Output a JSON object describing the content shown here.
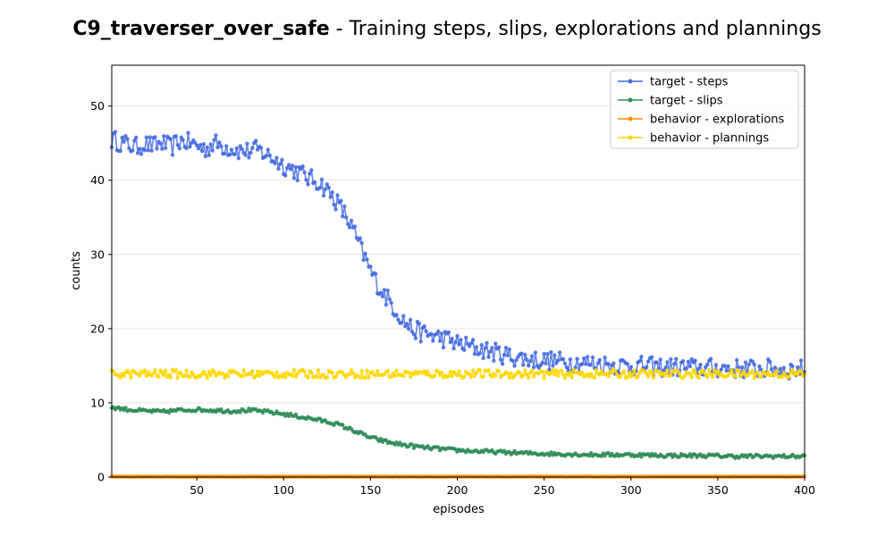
{
  "title_bold": "C9_traverser_over_safe",
  "title_rest": " - Training steps, slips, explorations and plannings",
  "chart_data": {
    "type": "line",
    "title": "C9_traverser_over_safe - Training steps, slips, explorations and plannings",
    "xlabel": "episodes",
    "ylabel": "counts",
    "xlim": [
      1,
      400
    ],
    "ylim": [
      0,
      55.5
    ],
    "xticks": [
      50,
      100,
      150,
      200,
      250,
      300,
      350,
      400
    ],
    "yticks": [
      0,
      10,
      20,
      30,
      40,
      50
    ],
    "grid": "horizontal",
    "legend_position": "top-right",
    "series": [
      {
        "name": "target - steps",
        "color": "#4169e1",
        "x": [
          1,
          5,
          10,
          15,
          20,
          25,
          30,
          35,
          40,
          45,
          50,
          55,
          60,
          65,
          70,
          75,
          80,
          85,
          90,
          95,
          100,
          105,
          110,
          115,
          120,
          125,
          130,
          135,
          140,
          145,
          150,
          155,
          160,
          165,
          170,
          175,
          180,
          185,
          190,
          195,
          200,
          210,
          220,
          230,
          240,
          250,
          260,
          270,
          280,
          290,
          300,
          310,
          320,
          330,
          340,
          350,
          360,
          370,
          380,
          390,
          400
        ],
        "y": [
          45.5,
          45.2,
          44.8,
          44.5,
          44.9,
          44.6,
          45.0,
          44.4,
          45.3,
          45.1,
          44.7,
          44.2,
          45.0,
          44.6,
          44.3,
          44.0,
          43.9,
          44.1,
          43.5,
          42.8,
          42.0,
          41.5,
          40.9,
          40.2,
          39.8,
          38.7,
          37.3,
          35.5,
          33.3,
          30.5,
          27.8,
          25.6,
          24.0,
          22.4,
          20.8,
          19.8,
          19.4,
          19.1,
          18.8,
          18.5,
          18.0,
          17.4,
          16.9,
          16.3,
          15.9,
          15.7,
          15.6,
          15.4,
          15.3,
          15.1,
          15.0,
          14.9,
          14.8,
          14.8,
          14.7,
          14.7,
          14.6,
          14.6,
          14.6,
          14.5,
          14.5
        ],
        "noise": 1.3
      },
      {
        "name": "target - slips",
        "color": "#2e8b57",
        "x": [
          1,
          10,
          20,
          30,
          40,
          50,
          60,
          70,
          80,
          90,
          100,
          110,
          120,
          130,
          140,
          150,
          160,
          170,
          180,
          190,
          200,
          220,
          240,
          260,
          280,
          300,
          320,
          340,
          360,
          380,
          400
        ],
        "y": [
          9.4,
          9.1,
          8.9,
          8.8,
          9.0,
          9.1,
          9.0,
          8.9,
          9.0,
          8.8,
          8.5,
          8.1,
          7.7,
          7.2,
          6.3,
          5.3,
          4.7,
          4.3,
          4.0,
          3.8,
          3.6,
          3.4,
          3.2,
          3.1,
          3.0,
          3.0,
          2.9,
          2.9,
          2.8,
          2.8,
          2.8
        ],
        "noise": 0.25
      },
      {
        "name": "behavior - explorations",
        "color": "#ff8c00",
        "x": [
          1,
          400
        ],
        "y": [
          0.05,
          0.05
        ],
        "noise": 0.02
      },
      {
        "name": "behavior - plannings",
        "color": "#ffd700",
        "x": [
          1,
          400
        ],
        "y": [
          13.9,
          13.9
        ],
        "noise": 0.55
      }
    ]
  }
}
